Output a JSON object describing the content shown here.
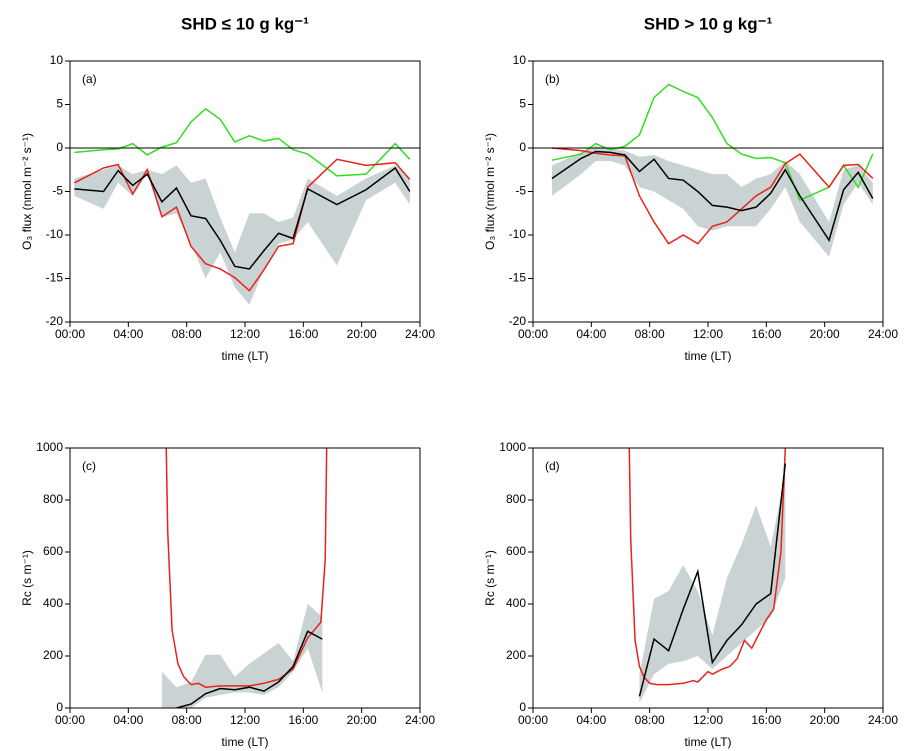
{
  "chart_data": [
    {
      "type": "line",
      "title": "SHD ≤ 10 g kg⁻¹",
      "panel_label": "(a)",
      "ylabel": "O₃ flux (nmol m⁻² s⁻¹)",
      "xlabel": "time (LT)",
      "xlim": [
        0,
        24
      ],
      "xticks": [
        {
          "value": 0,
          "label": "00:00"
        },
        {
          "value": 4,
          "label": "04:00"
        },
        {
          "value": 8,
          "label": "08:00"
        },
        {
          "value": 12,
          "label": "12:00"
        },
        {
          "value": 16,
          "label": "16:00"
        },
        {
          "value": 20,
          "label": "20:00"
        },
        {
          "value": 24,
          "label": "24:00"
        }
      ],
      "ylim": [
        -20,
        10
      ],
      "yticks": [
        -20,
        -15,
        -10,
        -5,
        0,
        5,
        10
      ],
      "zero_line": true,
      "series": [
        {
          "kind": "band",
          "color": "#cad3d3",
          "x": [
            0.3,
            2.3,
            3.3,
            4.3,
            5.3,
            6.3,
            7.3,
            8.3,
            9.3,
            10.3,
            11.3,
            12.3,
            13.3,
            14.3,
            15.3,
            16.3,
            18.3,
            20.3,
            22.3,
            23.3
          ],
          "lower": [
            -5.5,
            -7,
            -4,
            -5.5,
            -3,
            -8,
            -7.5,
            -11,
            -15,
            -12,
            -16,
            -18,
            -14,
            -11,
            -10.5,
            -8.5,
            -13.5,
            -6,
            -4,
            -6.5
          ],
          "upper": [
            -3.5,
            -2.5,
            -2,
            -3,
            -2.5,
            -3,
            -2,
            -4,
            -3.5,
            -8,
            -12,
            -7.5,
            -7.5,
            -8.5,
            -8,
            -3.5,
            -5.5,
            -3.5,
            -2,
            -3.5
          ]
        },
        {
          "color": "#33dd22",
          "x": [
            0.3,
            2.3,
            3.3,
            4.3,
            5.3,
            6.3,
            7.3,
            8.3,
            9.3,
            10.3,
            11.3,
            12.3,
            13.3,
            14.3,
            15.3,
            16.3,
            18.3,
            20.3,
            22.3,
            23.3
          ],
          "values": [
            -0.5,
            -0.2,
            -0.1,
            0.5,
            -0.8,
            0.1,
            0.6,
            3,
            4.5,
            3.3,
            0.7,
            1.4,
            0.8,
            1.1,
            -0.2,
            -0.7,
            -3.2,
            -3,
            0.5,
            -1.3
          ]
        },
        {
          "color": "#e8231b",
          "x": [
            0.3,
            2.3,
            3.3,
            4.3,
            5.3,
            6.3,
            7.3,
            8.3,
            9.3,
            10.3,
            11.3,
            12.3,
            13.3,
            14.3,
            15.3,
            16.3,
            18.3,
            20.3,
            22.3,
            23.3
          ],
          "values": [
            -4,
            -2.3,
            -1.9,
            -5.3,
            -2.5,
            -7.9,
            -6.8,
            -11.3,
            -13.3,
            -13.9,
            -14.9,
            -16.4,
            -14,
            -11.3,
            -11,
            -4.5,
            -1.3,
            -2,
            -1.7,
            -3.6
          ]
        },
        {
          "color": "#000000",
          "x": [
            0.3,
            2.3,
            3.3,
            4.3,
            5.3,
            6.3,
            7.3,
            8.3,
            9.3,
            10.3,
            11.3,
            12.3,
            13.3,
            14.3,
            15.3,
            16.3,
            18.3,
            20.3,
            22.3,
            23.3
          ],
          "values": [
            -4.7,
            -5,
            -2.6,
            -4.3,
            -3,
            -6.2,
            -4.6,
            -7.8,
            -8.1,
            -10.6,
            -13.6,
            -13.9,
            -11.8,
            -9.8,
            -10.4,
            -4.7,
            -6.5,
            -4.8,
            -2.3,
            -5
          ]
        }
      ]
    },
    {
      "type": "line",
      "title": "SHD > 10 g kg⁻¹",
      "panel_label": "(b)",
      "ylabel": "O₃ flux (nmol m⁻² s⁻¹)",
      "xlabel": "time (LT)",
      "xlim": [
        0,
        24
      ],
      "xticks": [
        {
          "value": 0,
          "label": "00:00"
        },
        {
          "value": 4,
          "label": "04:00"
        },
        {
          "value": 8,
          "label": "08:00"
        },
        {
          "value": 12,
          "label": "12:00"
        },
        {
          "value": 16,
          "label": "16:00"
        },
        {
          "value": 20,
          "label": "20:00"
        },
        {
          "value": 24,
          "label": "24:00"
        }
      ],
      "ylim": [
        -20,
        10
      ],
      "yticks": [
        -20,
        -15,
        -10,
        -5,
        0,
        5,
        10
      ],
      "zero_line": true,
      "series": [
        {
          "kind": "band",
          "color": "#cad3d3",
          "x": [
            1.3,
            3.3,
            4.3,
            5.3,
            6.3,
            7.3,
            8.3,
            9.3,
            10.3,
            11.3,
            12.3,
            13.3,
            14.3,
            15.3,
            16.3,
            17.3,
            18.3,
            20.3,
            21.3,
            22.3,
            23.3
          ],
          "lower": [
            -5.5,
            -3,
            -1.5,
            -1.5,
            -2,
            -4.5,
            -5,
            -6,
            -7,
            -9,
            -9.5,
            -9,
            -9,
            -9,
            -7,
            -4.5,
            -8.5,
            -12.5,
            -6.5,
            -4,
            -6.5
          ],
          "upper": [
            -2,
            -0.5,
            0.2,
            0,
            -0.3,
            -1,
            -0.8,
            -1.5,
            -2,
            -2.5,
            -3,
            -3,
            -4.5,
            -3.5,
            -3,
            -1.5,
            -3,
            -8.5,
            -2.5,
            -2,
            -4
          ]
        },
        {
          "color": "#33dd22",
          "x": [
            1.3,
            3.3,
            4.3,
            5.3,
            6.3,
            7.3,
            8.3,
            9.3,
            10.3,
            11.3,
            12.3,
            13.3,
            14.3,
            15.3,
            16.3,
            17.3,
            18.3,
            20.3,
            21.3,
            22.3,
            23.3
          ],
          "values": [
            -1.4,
            -0.7,
            0.5,
            -0.2,
            0.2,
            1.5,
            5.8,
            7.3,
            6.5,
            5.8,
            3.5,
            0.5,
            -0.7,
            -1.2,
            -1.1,
            -1.7,
            -6,
            -4.5,
            -2,
            -4.5,
            -0.7
          ]
        },
        {
          "color": "#e8231b",
          "x": [
            1.3,
            3.3,
            4.3,
            5.3,
            6.3,
            7.3,
            8.3,
            9.3,
            10.3,
            11.3,
            12.3,
            13.3,
            14.3,
            15.3,
            16.3,
            17.3,
            18.3,
            20.3,
            21.3,
            22.3,
            23.3
          ],
          "values": [
            0,
            -0.3,
            -0.6,
            -0.8,
            -0.9,
            -5.5,
            -8.5,
            -11,
            -10,
            -11,
            -9,
            -8.5,
            -7,
            -5.5,
            -4.5,
            -1.8,
            -0.7,
            -4.5,
            -2,
            -1.9,
            -3.5
          ]
        },
        {
          "color": "#000000",
          "x": [
            1.3,
            3.3,
            4.3,
            5.3,
            6.3,
            7.3,
            8.3,
            9.3,
            10.3,
            11.3,
            12.3,
            13.3,
            14.3,
            15.3,
            16.3,
            17.3,
            18.3,
            20.3,
            21.3,
            22.3,
            23.3
          ],
          "values": [
            -3.5,
            -1.2,
            -0.4,
            -0.5,
            -0.8,
            -2.7,
            -1.3,
            -3.5,
            -3.7,
            -5,
            -6.6,
            -6.8,
            -7.2,
            -6.8,
            -5.2,
            -2.5,
            -5.5,
            -10.6,
            -4.8,
            -2.8,
            -5.8
          ]
        }
      ]
    },
    {
      "type": "line",
      "panel_label": "(c)",
      "ylabel": "Rc (s m⁻¹)",
      "xlabel": "time (LT)",
      "xlim": [
        0,
        24
      ],
      "xticks": [
        {
          "value": 0,
          "label": "00:00"
        },
        {
          "value": 4,
          "label": "04:00"
        },
        {
          "value": 8,
          "label": "08:00"
        },
        {
          "value": 12,
          "label": "12:00"
        },
        {
          "value": 16,
          "label": "16:00"
        },
        {
          "value": 20,
          "label": "20:00"
        },
        {
          "value": 24,
          "label": "24:00"
        }
      ],
      "ylim": [
        0,
        1000
      ],
      "yticks": [
        0,
        200,
        400,
        600,
        800,
        1000
      ],
      "zero_line": false,
      "series": [
        {
          "kind": "band",
          "color": "#cad3d3",
          "x": [
            6.3,
            7.3,
            8.3,
            9.3,
            10.3,
            11.3,
            12.3,
            13.3,
            14.3,
            15.3,
            16.3,
            17.3
          ],
          "lower": [
            0,
            0,
            0,
            40,
            50,
            60,
            60,
            50,
            80,
            140,
            230,
            60
          ],
          "upper": [
            140,
            80,
            100,
            205,
            205,
            120,
            170,
            210,
            250,
            180,
            400,
            350
          ]
        },
        {
          "color": "#e8231b",
          "x": [
            6.6,
            6.7,
            7,
            7.4,
            7.8,
            8.3,
            8.8,
            9.3,
            10.3,
            11.3,
            12.3,
            13.3,
            14.3,
            15.3,
            16.3,
            17.2,
            17.5,
            17.6
          ],
          "values": [
            1000,
            680,
            300,
            170,
            120,
            90,
            95,
            80,
            85,
            85,
            85,
            95,
            110,
            150,
            270,
            330,
            570,
            1000
          ]
        },
        {
          "color": "#000000",
          "x": [
            7.3,
            8.3,
            9.3,
            10.3,
            11.3,
            12.3,
            13.3,
            14.3,
            15.3,
            16.3,
            17.3
          ],
          "values": [
            0,
            15,
            55,
            75,
            70,
            80,
            65,
            100,
            160,
            295,
            265
          ]
        }
      ]
    },
    {
      "type": "line",
      "panel_label": "(d)",
      "ylabel": "Rc (s m⁻¹)",
      "xlabel": "time (LT)",
      "xlim": [
        0,
        24
      ],
      "xticks": [
        {
          "value": 0,
          "label": "00:00"
        },
        {
          "value": 4,
          "label": "04:00"
        },
        {
          "value": 8,
          "label": "08:00"
        },
        {
          "value": 12,
          "label": "12:00"
        },
        {
          "value": 16,
          "label": "16:00"
        },
        {
          "value": 20,
          "label": "20:00"
        },
        {
          "value": 24,
          "label": "24:00"
        }
      ],
      "ylim": [
        0,
        1000
      ],
      "yticks": [
        0,
        200,
        400,
        600,
        800,
        1000
      ],
      "zero_line": false,
      "series": [
        {
          "kind": "band",
          "color": "#cad3d3",
          "x": [
            7.3,
            8.3,
            9.3,
            10.3,
            11.3,
            12.3,
            13.3,
            14.3,
            15.3,
            16.3,
            17.3
          ],
          "lower": [
            20,
            130,
            170,
            180,
            200,
            150,
            200,
            250,
            300,
            350,
            500
          ],
          "upper": [
            130,
            420,
            450,
            550,
            450,
            280,
            500,
            630,
            780,
            620,
            900
          ]
        },
        {
          "color": "#e8231b",
          "x": [
            6.6,
            6.7,
            7,
            7.3,
            7.6,
            8,
            8.5,
            9.3,
            10.3,
            11,
            11.3,
            12,
            12.3,
            13,
            13.5,
            14,
            14.5,
            15,
            16,
            16.5,
            17,
            17.3
          ],
          "values": [
            1000,
            650,
            260,
            160,
            120,
            95,
            90,
            90,
            95,
            105,
            100,
            140,
            130,
            150,
            160,
            190,
            260,
            230,
            340,
            380,
            600,
            1000
          ]
        },
        {
          "color": "#000000",
          "x": [
            7.3,
            8.3,
            9.3,
            10.3,
            11.3,
            12.3,
            13.3,
            14.3,
            15.3,
            16.3,
            17.3
          ],
          "values": [
            45,
            265,
            220,
            380,
            525,
            175,
            260,
            320,
            400,
            440,
            940
          ]
        }
      ]
    }
  ]
}
